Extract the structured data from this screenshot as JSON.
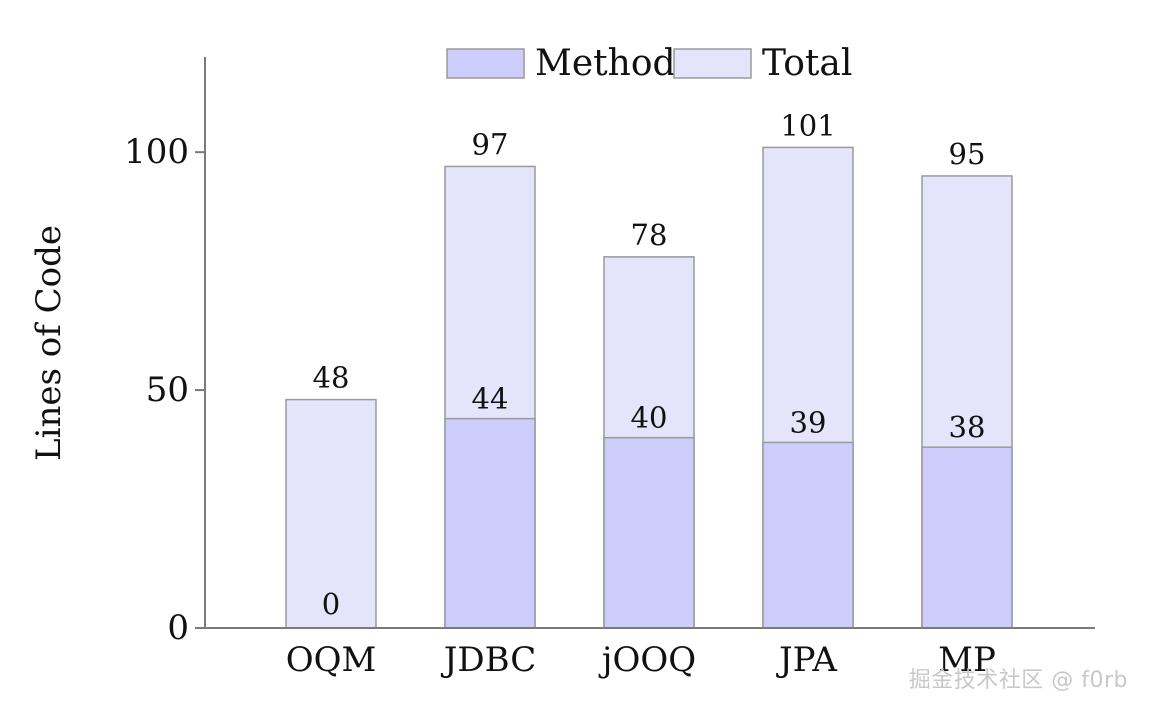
{
  "chart_data": {
    "type": "bar",
    "ylabel": "Lines of Code",
    "xlabel": "",
    "title": "",
    "categories": [
      "OQM",
      "JDBC",
      "jOOQ",
      "JPA",
      "MP"
    ],
    "series": [
      {
        "name": "Method",
        "values": [
          0,
          44,
          40,
          39,
          38
        ],
        "color": "#cccdfa"
      },
      {
        "name": "Total",
        "values": [
          48,
          97,
          78,
          101,
          95
        ],
        "color": "#e4e5fb"
      }
    ],
    "ylim": [
      0,
      120
    ],
    "yticks": [
      0,
      50,
      100
    ],
    "ytick_labels": [
      "0",
      "50",
      "100"
    ],
    "legend_position": "top",
    "grid": false,
    "bar_outline_color": "#9a9a9a",
    "axis_color": "#7a7a7a"
  },
  "watermark": "掘金技术社区 @ f0rb"
}
